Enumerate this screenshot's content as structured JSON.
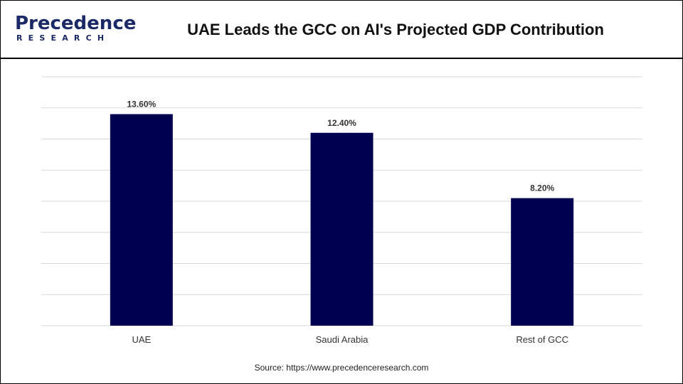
{
  "header": {
    "logo_main": "Precedence",
    "logo_sub": "RESEARCH",
    "title": "UAE Leads the GCC on AI's Projected GDP Contribution"
  },
  "chart_data": {
    "type": "bar",
    "categories": [
      "UAE",
      "Saudi Arabia",
      "Rest of GCC"
    ],
    "values": [
      13.6,
      12.4,
      8.2
    ],
    "value_labels": [
      "13.60%",
      "12.40%",
      "8.20%"
    ],
    "title": "UAE Leads the GCC on AI's Projected GDP Contribution",
    "xlabel": "",
    "ylabel": "",
    "ylim": [
      0,
      16
    ],
    "grid": true,
    "bar_color": "#000050",
    "grid_color": "#d9d9d9"
  },
  "footer": {
    "source": "Source: https://www.precedenceresearch.com"
  }
}
